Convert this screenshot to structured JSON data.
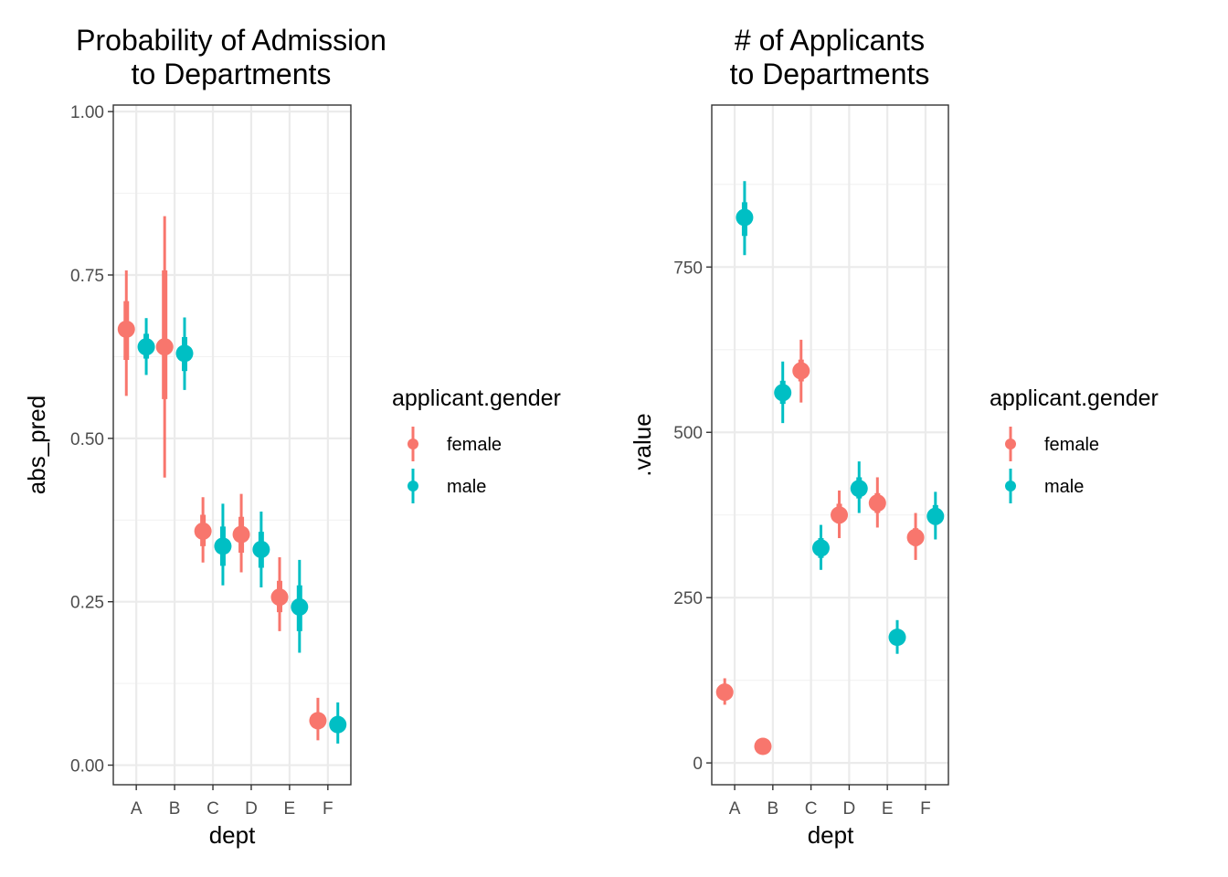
{
  "colors": {
    "female": "#F8766D",
    "male": "#00BFC4"
  },
  "chart_data": [
    {
      "type": "scatter",
      "id": "left",
      "title": [
        "Probability of Admission",
        "to Departments"
      ],
      "xlabel": "dept",
      "ylabel": "abs_pred",
      "categories": [
        "A",
        "B",
        "C",
        "D",
        "E",
        "F"
      ],
      "ylim": [
        -0.03,
        1.01
      ],
      "yticks": [
        0,
        0.25,
        0.5,
        0.75,
        1.0
      ],
      "ytick_labels": [
        "0.00",
        "0.25",
        "0.50",
        "0.75",
        "1.00"
      ],
      "grid": true,
      "legend_position": "right",
      "series": [
        {
          "name": "female",
          "color": "#F8766D",
          "points": [
            {
              "x": "A",
              "y": 0.667,
              "inner": [
                0.62,
                0.71
              ],
              "outer": [
                0.565,
                0.757
              ]
            },
            {
              "x": "B",
              "y": 0.64,
              "inner": [
                0.56,
                0.757
              ],
              "outer": [
                0.44,
                0.84
              ]
            },
            {
              "x": "C",
              "y": 0.358,
              "inner": [
                0.335,
                0.383
              ],
              "outer": [
                0.31,
                0.41
              ]
            },
            {
              "x": "D",
              "y": 0.353,
              "inner": [
                0.325,
                0.38
              ],
              "outer": [
                0.295,
                0.415
              ]
            },
            {
              "x": "E",
              "y": 0.257,
              "inner": [
                0.234,
                0.282
              ],
              "outer": [
                0.205,
                0.318
              ]
            },
            {
              "x": "F",
              "y": 0.068,
              "inner": [
                0.055,
                0.08
              ],
              "outer": [
                0.038,
                0.103
              ]
            }
          ]
        },
        {
          "name": "male",
          "color": "#00BFC4",
          "points": [
            {
              "x": "A",
              "y": 0.64,
              "inner": [
                0.622,
                0.66
              ],
              "outer": [
                0.597,
                0.684
              ]
            },
            {
              "x": "B",
              "y": 0.63,
              "inner": [
                0.603,
                0.655
              ],
              "outer": [
                0.574,
                0.685
              ]
            },
            {
              "x": "C",
              "y": 0.335,
              "inner": [
                0.305,
                0.365
              ],
              "outer": [
                0.275,
                0.4
              ]
            },
            {
              "x": "D",
              "y": 0.33,
              "inner": [
                0.302,
                0.357
              ],
              "outer": [
                0.272,
                0.388
              ]
            },
            {
              "x": "E",
              "y": 0.242,
              "inner": [
                0.205,
                0.275
              ],
              "outer": [
                0.172,
                0.314
              ]
            },
            {
              "x": "F",
              "y": 0.062,
              "inner": [
                0.05,
                0.075
              ],
              "outer": [
                0.033,
                0.096
              ]
            }
          ]
        }
      ],
      "legend": {
        "title": "applicant.gender",
        "items": [
          "female",
          "male"
        ]
      }
    },
    {
      "type": "scatter",
      "id": "right",
      "title": [
        "# of Applicants",
        "to Departments"
      ],
      "xlabel": "dept",
      "ylabel": ".value",
      "categories": [
        "A",
        "B",
        "C",
        "D",
        "E",
        "F"
      ],
      "ylim": [
        -33,
        995
      ],
      "yticks": [
        0,
        250,
        500,
        750
      ],
      "ytick_labels": [
        "0",
        "250",
        "500",
        "750"
      ],
      "grid": true,
      "legend_position": "right",
      "series": [
        {
          "name": "female",
          "color": "#F8766D",
          "points": [
            {
              "x": "A",
              "y": 107,
              "inner": [
                98,
                117
              ],
              "outer": [
                88,
                128
              ]
            },
            {
              "x": "B",
              "y": 25,
              "inner": [
                21,
                29
              ],
              "outer": [
                18,
                32
              ]
            },
            {
              "x": "C",
              "y": 593,
              "inner": [
                577,
                610
              ],
              "outer": [
                545,
                640
              ]
            },
            {
              "x": "D",
              "y": 375,
              "inner": [
                362,
                392
              ],
              "outer": [
                340,
                412
              ]
            },
            {
              "x": "E",
              "y": 393,
              "inner": [
                378,
                408
              ],
              "outer": [
                356,
                432
              ]
            },
            {
              "x": "F",
              "y": 341,
              "inner": [
                328,
                355
              ],
              "outer": [
                307,
                378
              ]
            }
          ]
        },
        {
          "name": "male",
          "color": "#00BFC4",
          "points": [
            {
              "x": "A",
              "y": 825,
              "inner": [
                797,
                848
              ],
              "outer": [
                768,
                880
              ]
            },
            {
              "x": "B",
              "y": 560,
              "inner": [
                543,
                578
              ],
              "outer": [
                514,
                607
              ]
            },
            {
              "x": "C",
              "y": 325,
              "inner": [
                310,
                340
              ],
              "outer": [
                292,
                360
              ]
            },
            {
              "x": "D",
              "y": 415,
              "inner": [
                400,
                432
              ],
              "outer": [
                378,
                456
              ]
            },
            {
              "x": "E",
              "y": 190,
              "inner": [
                180,
                202
              ],
              "outer": [
                165,
                216
              ]
            },
            {
              "x": "F",
              "y": 373,
              "inner": [
                360,
                390
              ],
              "outer": [
                338,
                410
              ]
            }
          ]
        }
      ],
      "legend": {
        "title": "applicant.gender",
        "items": [
          "female",
          "male"
        ]
      }
    }
  ]
}
